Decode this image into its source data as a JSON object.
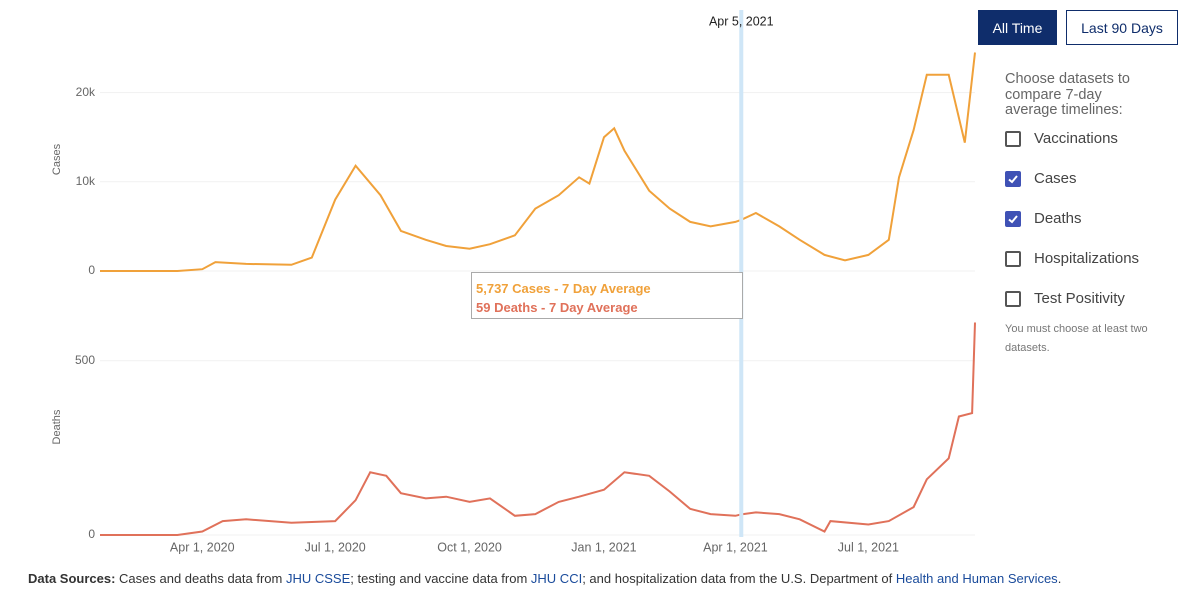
{
  "chart_data": [
    {
      "type": "line",
      "y_label": "Cases",
      "x": [
        "2020-01-22",
        "2020-03-15",
        "2020-04-01",
        "2020-04-10",
        "2020-05-01",
        "2020-06-01",
        "2020-06-15",
        "2020-07-01",
        "2020-07-15",
        "2020-08-01",
        "2020-08-15",
        "2020-09-01",
        "2020-09-15",
        "2020-10-01",
        "2020-10-15",
        "2020-11-01",
        "2020-11-15",
        "2020-12-01",
        "2020-12-15",
        "2020-12-22",
        "2021-01-01",
        "2021-01-08",
        "2021-01-15",
        "2021-02-01",
        "2021-02-15",
        "2021-03-01",
        "2021-03-15",
        "2021-04-01",
        "2021-04-05",
        "2021-04-15",
        "2021-05-01",
        "2021-05-15",
        "2021-06-01",
        "2021-06-15",
        "2021-07-01",
        "2021-07-15",
        "2021-07-22",
        "2021-08-01",
        "2021-08-10",
        "2021-08-25",
        "2021-09-05",
        "2021-09-12"
      ],
      "series": [
        {
          "name": "Cases",
          "color": "#f0a13a",
          "values": [
            0,
            0,
            200,
            1000,
            800,
            700,
            1500,
            8000,
            11800,
            8500,
            4500,
            3500,
            2800,
            2500,
            3000,
            4000,
            7000,
            8500,
            10500,
            9800,
            15000,
            16000,
            13500,
            9000,
            7000,
            5500,
            5000,
            5500,
            5737,
            6500,
            5000,
            3500,
            1800,
            1200,
            1800,
            3500,
            10500,
            15800,
            22000,
            22000,
            14400,
            24500
          ]
        }
      ],
      "xlim": [
        "2020-01-22",
        "2021-09-12"
      ],
      "ylim": [
        0,
        25000
      ],
      "yticks": [
        0,
        {
          "value": 10000,
          "label": "10k"
        },
        {
          "value": 20000,
          "label": "20k"
        }
      ],
      "grid": true
    },
    {
      "type": "line",
      "y_label": "Deaths",
      "x": [
        "2020-01-22",
        "2020-03-15",
        "2020-04-01",
        "2020-04-15",
        "2020-05-01",
        "2020-06-01",
        "2020-07-01",
        "2020-07-15",
        "2020-07-25",
        "2020-08-05",
        "2020-08-15",
        "2020-09-01",
        "2020-09-15",
        "2020-10-01",
        "2020-10-15",
        "2020-11-01",
        "2020-11-15",
        "2020-12-01",
        "2020-12-15",
        "2021-01-01",
        "2021-01-15",
        "2021-02-01",
        "2021-02-15",
        "2021-03-01",
        "2021-03-15",
        "2021-04-01",
        "2021-04-05",
        "2021-04-15",
        "2021-05-01",
        "2021-05-15",
        "2021-06-01",
        "2021-06-05",
        "2021-07-01",
        "2021-07-15",
        "2021-08-01",
        "2021-08-10",
        "2021-08-25",
        "2021-09-01",
        "2021-09-10",
        "2021-09-12"
      ],
      "series": [
        {
          "name": "Deaths",
          "color": "#e0715a",
          "values": [
            0,
            0,
            10,
            40,
            45,
            35,
            40,
            100,
            180,
            170,
            120,
            105,
            110,
            95,
            105,
            55,
            60,
            95,
            110,
            130,
            180,
            170,
            125,
            75,
            60,
            55,
            59,
            65,
            60,
            45,
            10,
            40,
            30,
            40,
            80,
            160,
            220,
            340,
            350,
            610
          ]
        }
      ],
      "xlim": [
        "2020-01-22",
        "2021-09-12"
      ],
      "ylim": [
        0,
        620
      ],
      "yticks": [
        0,
        500
      ],
      "xticks": [
        {
          "value": "2020-04-01",
          "label": "Apr 1, 2020"
        },
        {
          "value": "2020-07-01",
          "label": "Jul 1, 2020"
        },
        {
          "value": "2020-10-01",
          "label": "Oct 1, 2020"
        },
        {
          "value": "2021-01-01",
          "label": "Jan 1, 2021"
        },
        {
          "value": "2021-04-01",
          "label": "Apr 1, 2021"
        },
        {
          "value": "2021-07-01",
          "label": "Jul 1, 2021"
        }
      ],
      "grid": true
    }
  ],
  "hover": {
    "x": "2021-04-05",
    "label": "Apr 5, 2021",
    "tooltip": [
      "5,737 Cases - 7 Day Average",
      "59 Deaths - 7 Day Average"
    ]
  },
  "buttons": [
    {
      "label": "All Time",
      "active": true
    },
    {
      "label": "Last 90 Days",
      "active": false
    }
  ],
  "panel": {
    "heading": "Choose datasets to compare 7-day average timelines:",
    "options": [
      {
        "label": "Vaccinations",
        "checked": false
      },
      {
        "label": "Cases",
        "checked": true
      },
      {
        "label": "Deaths",
        "checked": true
      },
      {
        "label": "Hospitalizations",
        "checked": false
      },
      {
        "label": "Test Positivity",
        "checked": false
      }
    ],
    "note": "You must choose at least two datasets."
  },
  "footer": [
    {
      "text": "Data Sources:",
      "bold": true
    },
    {
      "text": " Cases and deaths data from "
    },
    {
      "text": "JHU CSSE",
      "link": true
    },
    {
      "text": "; testing and vaccine data from "
    },
    {
      "text": "JHU CCI",
      "link": true
    },
    {
      "text": "; and hospitalization data from the U.S. Department of "
    },
    {
      "text": "Health and Human Services",
      "link": true
    },
    {
      "text": "."
    }
  ]
}
